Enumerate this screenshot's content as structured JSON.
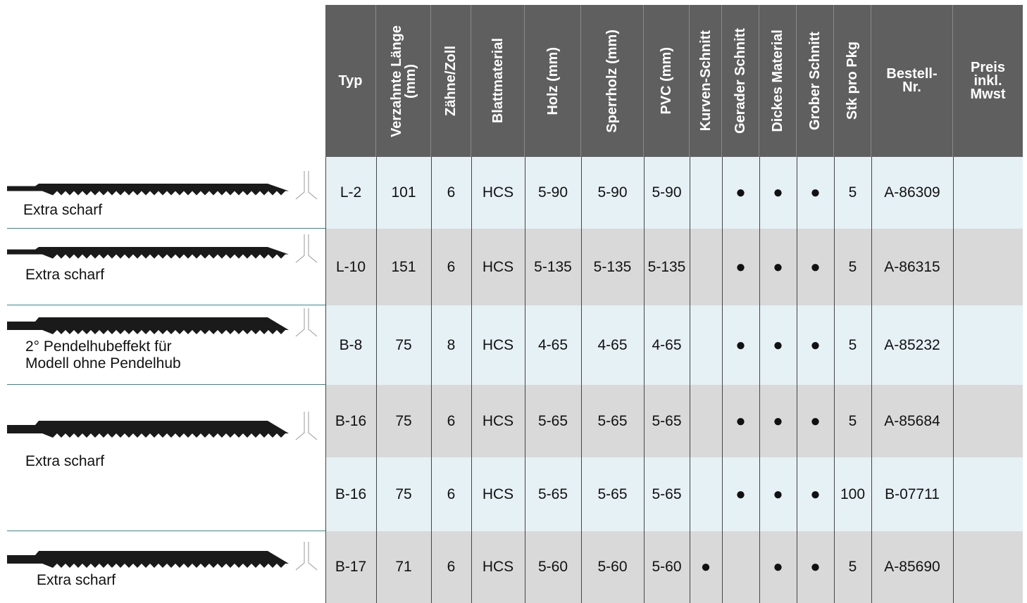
{
  "header": {
    "columns": [
      "Typ",
      "Verzahnte Länge\n(mm)",
      "Zähne/Zoll",
      "Blattmaterial",
      "Holz (mm)",
      "Sperrholz (mm)",
      "PVC (mm)",
      "Kurven-Schnitt",
      "Gerader Schnitt",
      "Dickes Material",
      "Grober Schnitt",
      "Stk pro Pkg",
      "Bestell-\nNr.",
      "Preis\ninkl.\nMwst"
    ]
  },
  "table": {
    "rows": [
      [
        "L-2",
        "101",
        "6",
        "HCS",
        "5-90",
        "5-90",
        "5-90",
        null,
        "●",
        "●",
        "●",
        "5",
        "A-86309",
        null
      ],
      [
        "L-10",
        "151",
        "6",
        "HCS",
        "5-135",
        "5-135",
        "5-135",
        null,
        "●",
        "●",
        "●",
        "5",
        "A-86315",
        null
      ],
      [
        "B-8",
        "75",
        "8",
        "HCS",
        "4-65",
        "4-65",
        "4-65",
        null,
        "●",
        "●",
        "●",
        "5",
        "A-85232",
        null
      ],
      [
        "B-16",
        "75",
        "6",
        "HCS",
        "5-65",
        "5-65",
        "5-65",
        null,
        "●",
        "●",
        "●",
        "5",
        "A-85684",
        null
      ],
      [
        "B-16",
        "75",
        "6",
        "HCS",
        "5-65",
        "5-65",
        "5-65",
        null,
        "●",
        "●",
        "●",
        "100",
        "B-07711",
        null
      ],
      [
        "B-17",
        "71",
        "6",
        "HCS",
        "5-60",
        "5-60",
        "5-60",
        "●",
        null,
        "●",
        "●",
        "5",
        "A-85690",
        null
      ]
    ]
  },
  "blades": [
    {
      "note": "Extra scharf"
    },
    {
      "note": "Extra scharf"
    },
    {
      "note": "2° Pendelhubeffekt für\nModell ohne Pendelhub"
    },
    {
      "note": "Extra scharf"
    },
    {
      "note": "Extra scharf"
    }
  ]
}
